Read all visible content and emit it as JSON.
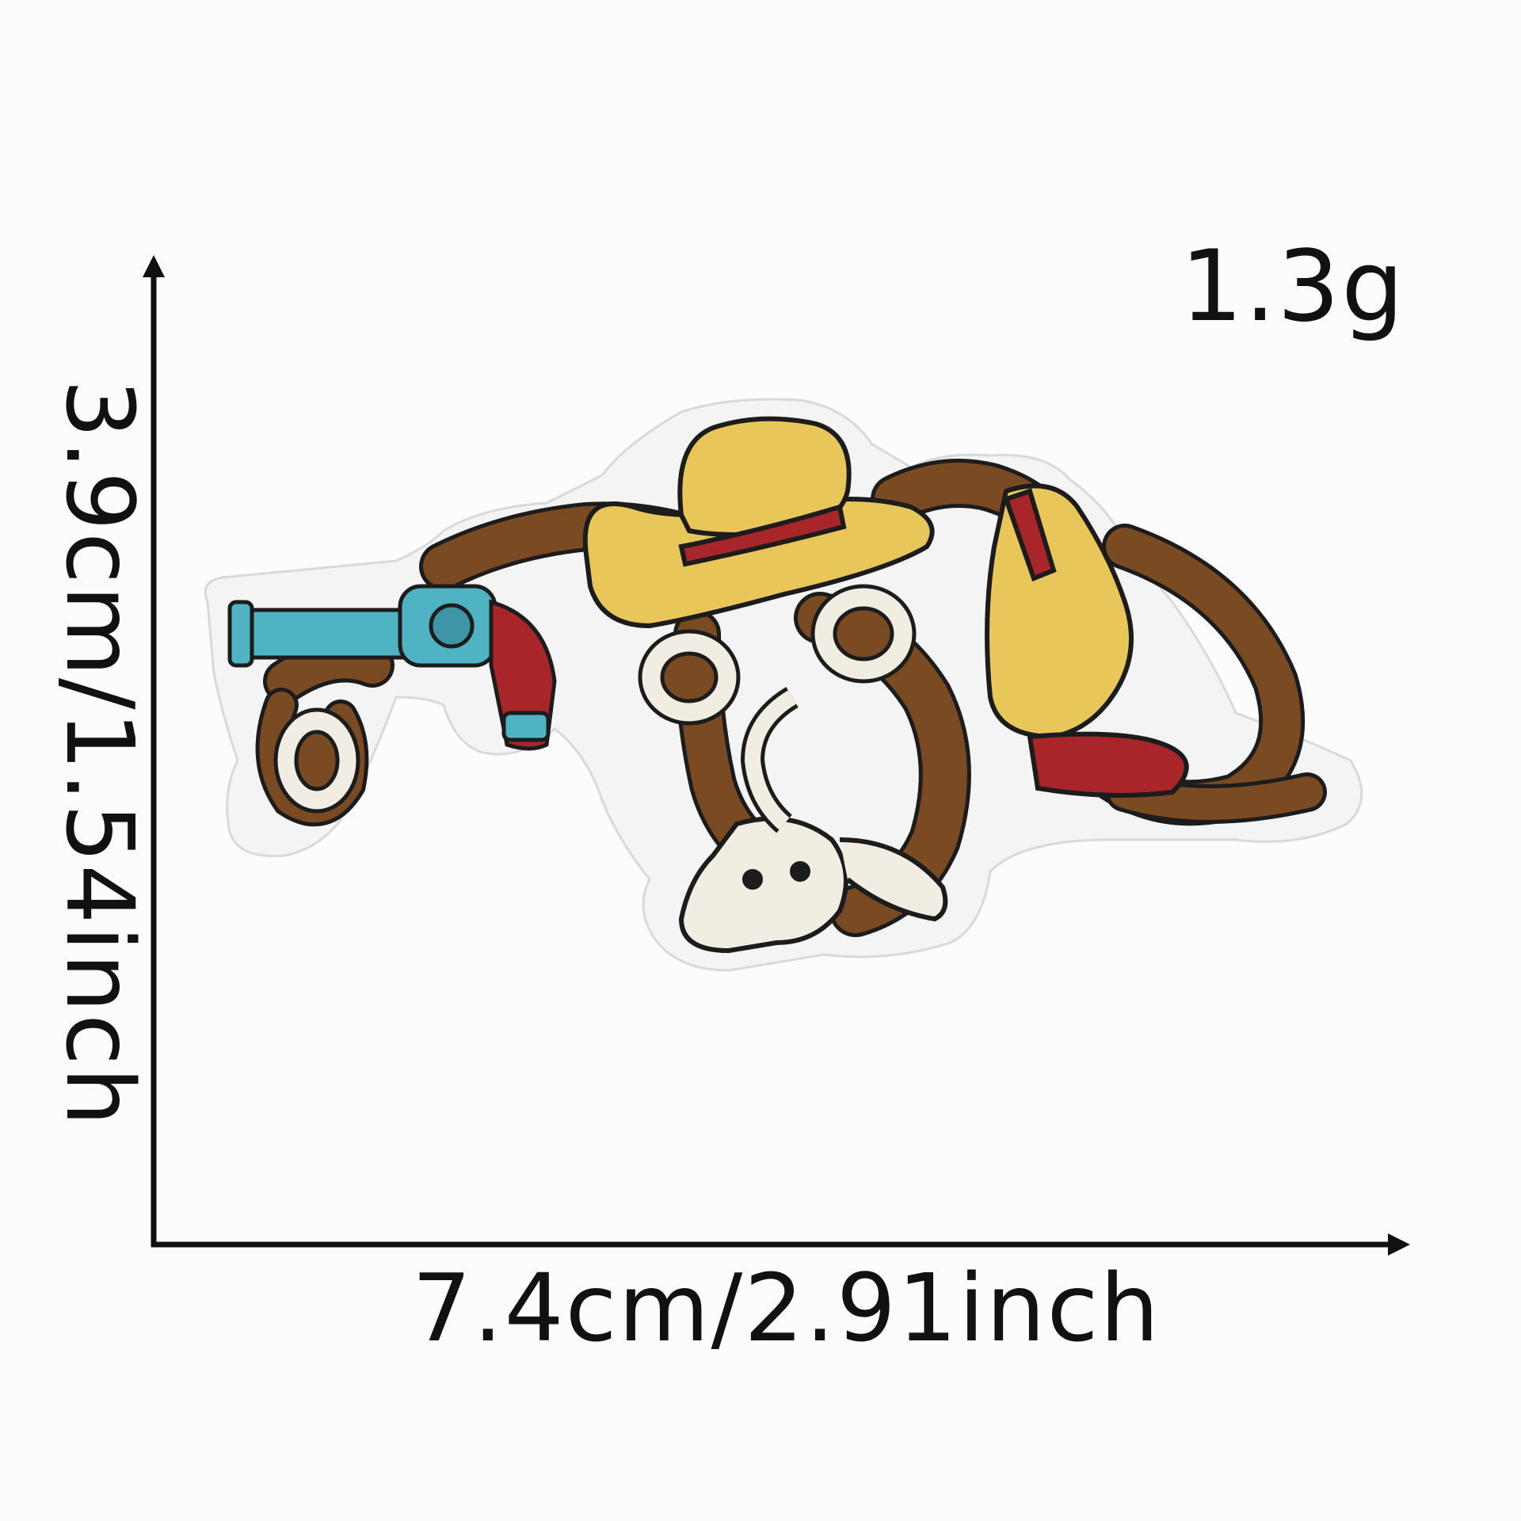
{
  "product": {
    "weight_label": "1.3g",
    "width_label": "7.4cm/2.91inch",
    "height_label": "3.9cm/1.54inch",
    "subject": "embroidered western patch with cowboy hat, revolver, lasso and bull skull"
  },
  "icons": [
    "revolver-icon",
    "cowboy-hat-icon",
    "lasso-icon",
    "bull-skull-icon",
    "cowboy-boot-icon"
  ],
  "colors": {
    "background": "#fcfcfc",
    "felt_backing": "#f4f4f4",
    "thread_brown": "#7a4a22",
    "thread_tan": "#e8c65a",
    "thread_teal": "#4fb3c4",
    "thread_red": "#a8262a",
    "thread_cream": "#f1ede3",
    "outline": "#1c1c1c"
  }
}
